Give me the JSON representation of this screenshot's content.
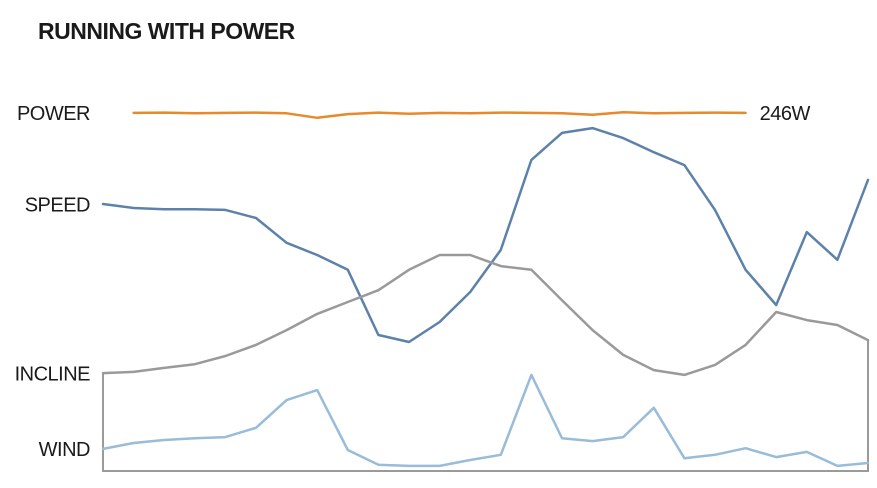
{
  "chart_data": {
    "type": "line",
    "title": "RUNNING WITH POWER",
    "x": [
      0,
      4,
      8,
      12,
      16,
      20,
      24,
      28,
      32,
      36,
      40,
      44,
      48,
      52,
      56,
      60,
      64,
      68,
      72,
      76,
      80,
      84,
      88,
      92,
      96,
      100
    ],
    "xlim": [
      0,
      100
    ],
    "ylim": [
      0,
      100
    ],
    "series": [
      {
        "name": "POWER",
        "color": "#e8892b",
        "values": [
          null,
          96.5,
          96.6,
          96.4,
          96.5,
          96.6,
          96.4,
          95.2,
          96.2,
          96.6,
          96.3,
          96.5,
          96.4,
          96.6,
          96.5,
          96.4,
          96.0,
          96.7,
          96.4,
          96.5,
          96.6,
          96.5,
          null,
          null,
          null,
          null
        ]
      },
      {
        "name": "SPEED",
        "color": "#5d82aa",
        "values": [
          71.9,
          70.8,
          70.5,
          70.5,
          70.3,
          68.1,
          61.4,
          58.1,
          54.1,
          36.5,
          34.6,
          40.0,
          48.1,
          59.5,
          83.8,
          91.1,
          92.4,
          89.7,
          85.9,
          82.4,
          70.3,
          54.1,
          44.6,
          64.3,
          56.8,
          78.4
        ]
      },
      {
        "name": "INCLINE",
        "color": "#9a9a9a",
        "values": [
          26.2,
          26.5,
          27.6,
          28.6,
          30.8,
          33.8,
          37.8,
          42.2,
          45.4,
          48.6,
          54.1,
          58.1,
          58.1,
          55.1,
          54.1,
          45.9,
          37.8,
          31.1,
          27.0,
          25.7,
          28.4,
          33.8,
          42.7,
          40.5,
          39.2,
          35.1
        ]
      },
      {
        "name": "WIND",
        "color": "#99bcd8",
        "values": [
          5.7,
          7.3,
          8.1,
          8.6,
          8.9,
          11.4,
          18.9,
          21.6,
          5.4,
          1.4,
          1.1,
          1.1,
          2.7,
          4.1,
          25.7,
          8.6,
          7.8,
          8.9,
          16.8,
          3.2,
          4.1,
          5.9,
          3.5,
          4.9,
          1.1,
          1.9
        ]
      }
    ],
    "annotations": [
      {
        "text": "246W"
      }
    ]
  }
}
